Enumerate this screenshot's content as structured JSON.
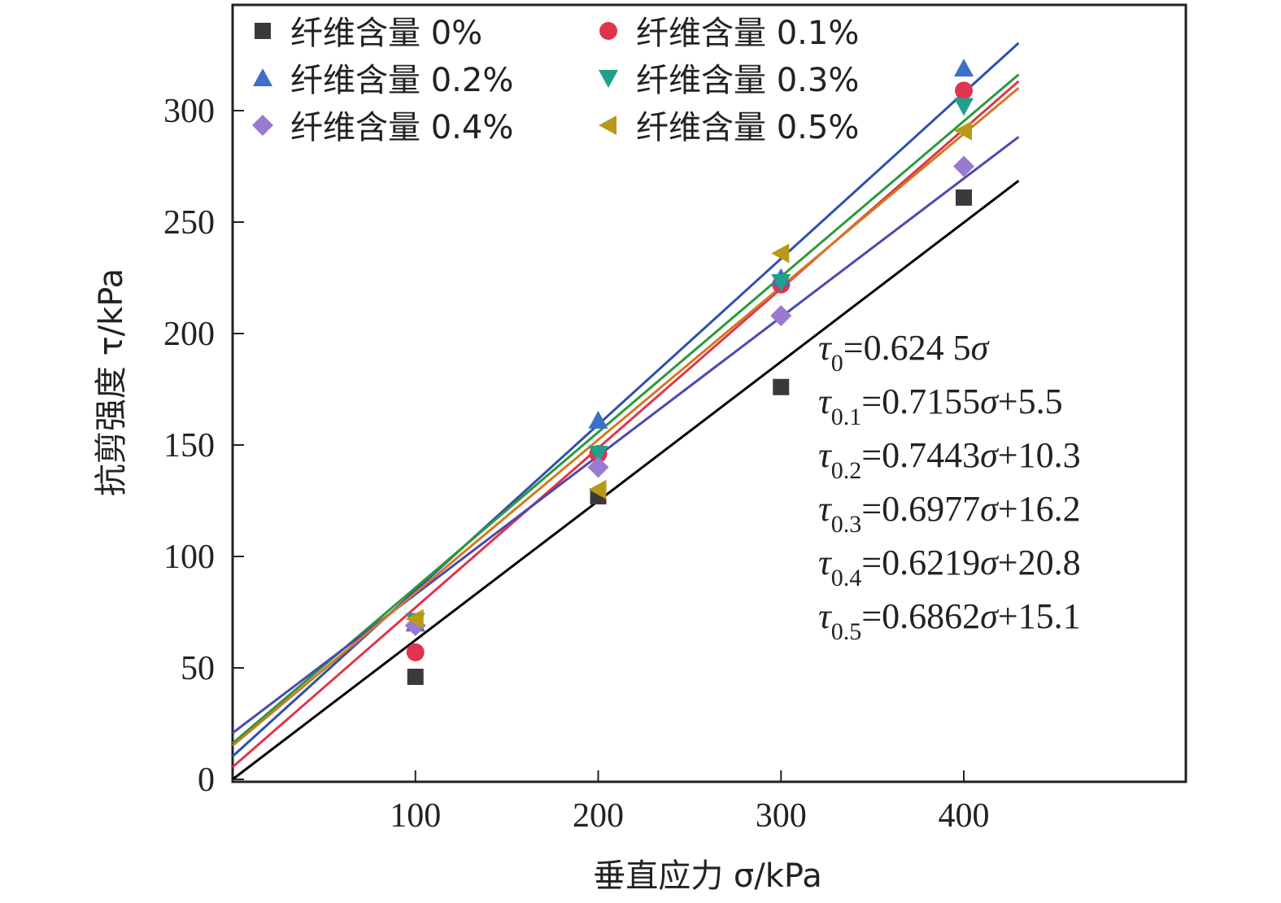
{
  "chart_data": {
    "type": "scatter",
    "xlabel": "垂直应力 σ/kPa",
    "ylabel": "抗剪强度 τ/kPa",
    "xlim": [
      0,
      520
    ],
    "ylim": [
      0,
      350
    ],
    "xticks": [
      100,
      200,
      300,
      400
    ],
    "yticks": [
      0,
      50,
      100,
      150,
      200,
      250,
      300
    ],
    "legend_position": "top-left",
    "grid": false,
    "series": [
      {
        "name": "纤维含量 0%",
        "marker": "square",
        "color": "#3a3a3a",
        "line_color": "#000000",
        "x": [
          100,
          200,
          300,
          400
        ],
        "y": [
          46,
          127,
          176,
          261
        ],
        "fit": {
          "slope": 0.6245,
          "intercept": 0
        }
      },
      {
        "name": "纤维含量 0.1%",
        "marker": "circle",
        "color": "#e0344c",
        "line_color": "#e0344c",
        "x": [
          100,
          200,
          300,
          400
        ],
        "y": [
          57,
          146,
          222,
          309
        ],
        "fit": {
          "slope": 0.7155,
          "intercept": 5.5
        }
      },
      {
        "name": "纤维含量 0.2%",
        "marker": "triangle-up",
        "color": "#3c6fc8",
        "line_color": "#2f4fb0",
        "x": [
          100,
          200,
          300,
          400
        ],
        "y": [
          70,
          161,
          225,
          319
        ],
        "fit": {
          "slope": 0.7443,
          "intercept": 10.3
        }
      },
      {
        "name": "纤维含量 0.3%",
        "marker": "triangle-down",
        "color": "#1fa08a",
        "line_color": "#2a9a3a",
        "x": [
          100,
          200,
          300,
          400
        ],
        "y": [
          71,
          146,
          223,
          302
        ],
        "fit": {
          "slope": 0.6977,
          "intercept": 16.2
        }
      },
      {
        "name": "纤维含量 0.4%",
        "marker": "diamond",
        "color": "#9a7ad0",
        "line_color": "#4a4ab0",
        "x": [
          100,
          200,
          300,
          400
        ],
        "y": [
          69,
          140,
          208,
          275
        ],
        "fit": {
          "slope": 0.6219,
          "intercept": 20.8
        }
      },
      {
        "name": "纤维含量 0.5%",
        "marker": "triangle-left",
        "color": "#b89a18",
        "line_color": "#d07a22",
        "x": [
          100,
          200,
          300,
          400
        ],
        "y": [
          72,
          130,
          236,
          291
        ],
        "fit": {
          "slope": 0.6862,
          "intercept": 15.1
        }
      }
    ],
    "equations": [
      {
        "sub": "0",
        "rhs": "=0.624 5",
        "tail": ""
      },
      {
        "sub": "0.1",
        "rhs": "=0.7155",
        "tail": "+5.5"
      },
      {
        "sub": "0.2",
        "rhs": "=0.7443",
        "tail": "+10.3"
      },
      {
        "sub": "0.3",
        "rhs": "=0.6977",
        "tail": "+16.2"
      },
      {
        "sub": "0.4",
        "rhs": "=0.6219",
        "tail": "+20.8"
      },
      {
        "sub": "0.5",
        "rhs": "=0.6862",
        "tail": "+15.1"
      }
    ],
    "equation_symbol": "τ",
    "equation_var": "σ"
  }
}
